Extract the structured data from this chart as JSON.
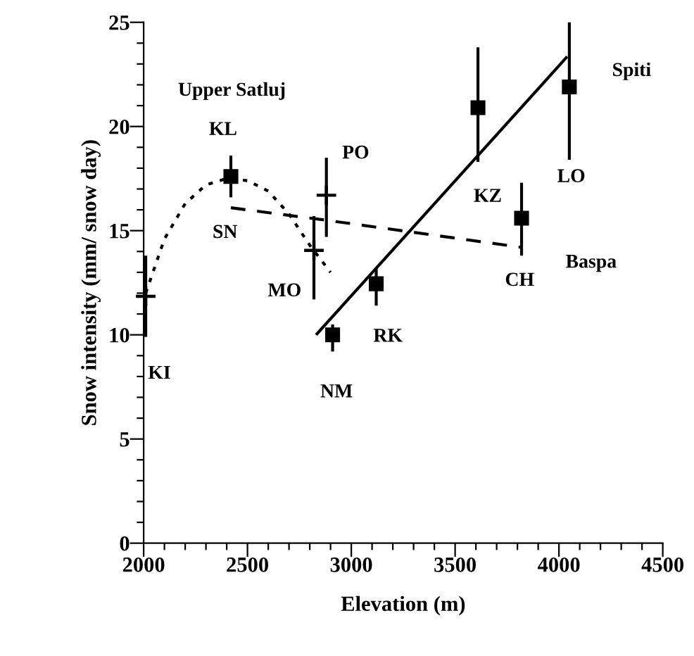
{
  "chart_data": {
    "type": "scatter",
    "xlabel": "Elevation (m)",
    "ylabel": "Snow intensity (mm/ snow day)",
    "xlim": [
      2000,
      4500
    ],
    "ylim": [
      0,
      25
    ],
    "xticks": [
      2000,
      {
        "value": 2100,
        "label": null
      },
      {
        "value": 2200,
        "label": null
      },
      {
        "value": 2300,
        "label": null
      },
      {
        "value": 2400,
        "label": null
      },
      2500,
      {
        "value": 2600,
        "label": null
      },
      {
        "value": 2700,
        "label": null
      },
      {
        "value": 2800,
        "label": null
      },
      {
        "value": 2900,
        "label": null
      },
      3000,
      {
        "value": 3100,
        "label": null
      },
      {
        "value": 3200,
        "label": null
      },
      {
        "value": 3300,
        "label": null
      },
      {
        "value": 3400,
        "label": null
      },
      3500,
      {
        "value": 3600,
        "label": null
      },
      {
        "value": 3700,
        "label": null
      },
      {
        "value": 3800,
        "label": null
      },
      {
        "value": 3900,
        "label": null
      },
      4000,
      {
        "value": 4100,
        "label": null
      },
      {
        "value": 4200,
        "label": null
      },
      {
        "value": 4300,
        "label": null
      },
      {
        "value": 4400,
        "label": null
      },
      4500
    ],
    "yticks": [
      0,
      {
        "value": 1,
        "label": null
      },
      {
        "value": 2,
        "label": null
      },
      {
        "value": 3,
        "label": null
      },
      {
        "value": 4,
        "label": null
      },
      5,
      {
        "value": 6,
        "label": null
      },
      {
        "value": 7,
        "label": null
      },
      {
        "value": 8,
        "label": null
      },
      {
        "value": 9,
        "label": null
      },
      10,
      {
        "value": 11,
        "label": null
      },
      {
        "value": 12,
        "label": null
      },
      {
        "value": 13,
        "label": null
      },
      {
        "value": 14,
        "label": null
      },
      15,
      {
        "value": 16,
        "label": null
      },
      {
        "value": 17,
        "label": null
      },
      {
        "value": 18,
        "label": null
      },
      {
        "value": 19,
        "label": null
      },
      20,
      {
        "value": 21,
        "label": null
      },
      {
        "value": 22,
        "label": null
      },
      {
        "value": 23,
        "label": null
      },
      {
        "value": 24,
        "label": null
      },
      25
    ],
    "grid": false,
    "legend": false,
    "series": [
      {
        "marker": "cross",
        "color": "#000000",
        "x": [
          2010,
          2820,
          2880
        ],
        "values": [
          11.85,
          14.05,
          16.7
        ],
        "errors": [
          [
            9.9,
            13.8
          ],
          [
            11.7,
            15.7
          ],
          [
            14.7,
            18.5
          ]
        ]
      },
      {
        "marker": "square",
        "color": "#000000",
        "x": [
          2420,
          2910,
          3120,
          3610,
          4050,
          3820
        ],
        "values": [
          17.6,
          10.0,
          12.45,
          20.9,
          21.9,
          15.6
        ],
        "errors": [
          [
            16.6,
            18.6
          ],
          [
            9.2,
            10.5
          ],
          [
            11.4,
            13.2
          ],
          [
            18.3,
            23.8
          ],
          [
            18.4,
            25
          ],
          [
            13.8,
            17.3
          ]
        ]
      },
      {
        "type": "line",
        "line_style": "dotted",
        "color": "#000000",
        "x": [
          2010,
          2100,
          2200,
          2300,
          2400,
          2500,
          2600,
          2700,
          2800,
          2900
        ],
        "values": [
          12.0,
          14.6,
          16.3,
          17.2,
          17.5,
          17.4,
          16.9,
          15.8,
          14.3,
          13.0
        ]
      },
      {
        "type": "line",
        "line_style": "dashed",
        "color": "#000000",
        "x": [
          2420,
          2880,
          3820
        ],
        "values": [
          16.1,
          15.5,
          14.2
        ]
      },
      {
        "type": "line",
        "line_style": "solid",
        "color": "#000000",
        "x": [
          2835,
          4035
        ],
        "values": [
          10.05,
          23.3
        ]
      }
    ],
    "annotations": [
      {
        "text": "KI",
        "x": 2010,
        "y": 9.9
      },
      {
        "text": "KL",
        "x": 2420,
        "y": 18.6
      },
      {
        "text": "SN",
        "x": 2420,
        "y": 16.1
      },
      {
        "text": "MO",
        "x": 2820,
        "y": 11.7
      },
      {
        "text": "PO",
        "x": 2880,
        "y": 18.5
      },
      {
        "text": "NM",
        "x": 2910,
        "y": 9.2
      },
      {
        "text": "RK",
        "x": 3120,
        "y": 11.4
      },
      {
        "text": "KZ",
        "x": 3610,
        "y": 18.3
      },
      {
        "text": "LO",
        "x": 4050,
        "y": 18.4
      },
      {
        "text": "CH",
        "x": 3820,
        "y": 13.8
      },
      "Upper Satluj",
      "Baspa",
      "Spiti"
    ]
  }
}
